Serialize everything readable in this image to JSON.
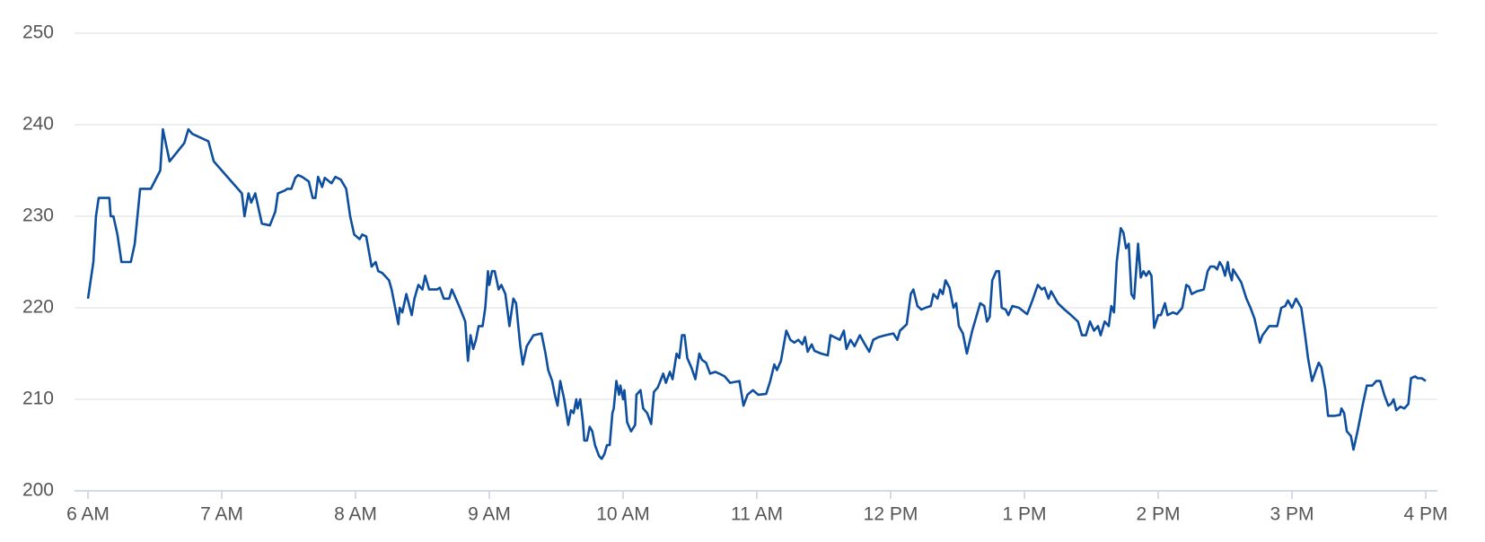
{
  "chart_data": {
    "type": "line",
    "color": "#0d4f9e",
    "grid": true,
    "x": [
      6.0,
      6.04,
      6.06,
      6.08,
      6.16,
      6.17,
      6.19,
      6.22,
      6.25,
      6.32,
      6.35,
      6.39,
      6.47,
      6.54,
      6.56,
      6.61,
      6.72,
      6.75,
      6.78,
      6.9,
      6.94,
      7.0,
      7.12,
      7.15,
      7.17,
      7.2,
      7.22,
      7.25,
      7.3,
      7.36,
      7.4,
      7.42,
      7.47,
      7.49,
      7.52,
      7.55,
      7.57,
      7.6,
      7.65,
      7.68,
      7.7,
      7.72,
      7.75,
      7.77,
      7.82,
      7.85,
      7.89,
      7.93,
      7.96,
      7.99,
      8.03,
      8.05,
      8.08,
      8.12,
      8.15,
      8.17,
      8.2,
      8.25,
      8.27,
      8.32,
      8.33,
      8.35,
      8.38,
      8.42,
      8.44,
      8.47,
      8.5,
      8.52,
      8.55,
      8.61,
      8.63,
      8.66,
      8.7,
      8.72,
      8.75,
      8.78,
      8.82,
      8.84,
      8.86,
      8.88,
      8.9,
      8.92,
      8.95,
      8.97,
      8.99,
      9.0,
      9.02,
      9.04,
      9.07,
      9.09,
      9.12,
      9.15,
      9.18,
      9.2,
      9.23,
      9.25,
      9.28,
      9.33,
      9.39,
      9.42,
      9.44,
      9.47,
      9.49,
      9.51,
      9.53,
      9.56,
      9.59,
      9.61,
      9.63,
      9.65,
      9.66,
      9.68,
      9.7,
      9.71,
      9.73,
      9.75,
      9.77,
      9.79,
      9.82,
      9.84,
      9.86,
      9.88,
      9.9,
      9.92,
      9.93,
      9.95,
      9.97,
      9.98,
      10.0,
      10.01,
      10.03,
      10.06,
      10.09,
      10.1,
      10.13,
      10.15,
      10.18,
      10.21,
      10.23,
      10.26,
      10.3,
      10.32,
      10.35,
      10.37,
      10.4,
      10.42,
      10.44,
      10.46,
      10.48,
      10.51,
      10.54,
      10.57,
      10.59,
      10.62,
      10.65,
      10.69,
      10.72,
      10.76,
      10.8,
      10.87,
      10.9,
      10.93,
      10.97,
      11.01,
      11.07,
      11.1,
      11.13,
      11.15,
      11.18,
      11.22,
      11.25,
      11.28,
      11.31,
      11.34,
      11.36,
      11.38,
      11.41,
      11.43,
      11.48,
      11.53,
      11.55,
      11.62,
      11.65,
      11.67,
      11.7,
      11.73,
      11.77,
      11.8,
      11.84,
      11.87,
      11.91,
      11.96,
      12.02,
      12.05,
      12.07,
      12.12,
      12.15,
      12.17,
      12.2,
      12.23,
      12.26,
      12.3,
      12.32,
      12.35,
      12.37,
      12.39,
      12.41,
      12.44,
      12.47,
      12.49,
      12.51,
      12.54,
      12.57,
      12.61,
      12.67,
      12.7,
      12.72,
      12.74,
      12.76,
      12.79,
      12.81,
      12.83,
      12.86,
      12.88,
      12.91,
      12.96,
      13.02,
      13.06,
      13.1,
      13.13,
      13.15,
      13.18,
      13.2,
      13.25,
      13.3,
      13.34,
      13.4,
      13.43,
      13.46,
      13.49,
      13.52,
      13.55,
      13.57,
      13.6,
      13.63,
      13.65,
      13.67,
      13.69,
      13.72,
      13.74,
      13.76,
      13.78,
      13.8,
      13.82,
      13.85,
      13.87,
      13.89,
      13.91,
      13.93,
      13.95,
      13.97,
      14.0,
      14.02,
      14.05,
      14.07,
      14.11,
      14.14,
      14.18,
      14.21,
      14.23,
      14.25,
      14.29,
      14.34,
      14.37,
      14.39,
      14.42,
      14.44,
      14.46,
      14.48,
      14.5,
      14.52,
      14.53,
      14.55,
      14.56,
      14.59,
      14.62,
      14.66,
      14.69,
      14.72,
      14.76,
      14.78,
      14.83,
      14.89,
      14.92,
      14.95,
      14.97,
      15.0,
      15.03,
      15.07,
      15.1,
      15.12,
      15.15,
      15.18,
      15.2,
      15.22,
      15.25,
      15.27,
      15.32,
      15.36,
      15.37,
      15.39,
      15.41,
      15.44,
      15.46,
      15.49,
      15.53,
      15.56,
      15.6,
      15.63,
      15.66,
      15.69,
      15.72,
      15.74,
      15.76,
      15.78,
      15.81,
      15.84,
      15.87,
      15.89,
      15.92,
      15.94,
      15.97,
      16.0
    ],
    "values": [
      221,
      225,
      230,
      232,
      232,
      230,
      230,
      228,
      225,
      225,
      227,
      233,
      233,
      235,
      239.5,
      236,
      238,
      239.5,
      239,
      238.2,
      236,
      235,
      233,
      232.5,
      230,
      232.5,
      231.5,
      232.5,
      229.2,
      229,
      230.5,
      232.5,
      232.8,
      233,
      233,
      234.2,
      234.5,
      234.3,
      233.8,
      232,
      232,
      234.3,
      233.2,
      234.2,
      233.6,
      234.3,
      234,
      233,
      230,
      228,
      227.5,
      228,
      227.8,
      224.5,
      225,
      224,
      223.8,
      223,
      222,
      218.2,
      220,
      219.5,
      221.5,
      219.2,
      221,
      222.5,
      222,
      223.5,
      222,
      222,
      222.2,
      221,
      221,
      222,
      221,
      220,
      218.5,
      214.2,
      217,
      215.5,
      216.5,
      218,
      218,
      220,
      224,
      222.5,
      224,
      224,
      222,
      222.5,
      221.5,
      218,
      221,
      220.5,
      216,
      213.8,
      215.8,
      217,
      217.2,
      215,
      213.2,
      212,
      210.5,
      209.3,
      212,
      210,
      207.2,
      208.8,
      208.5,
      210,
      209,
      210,
      207.5,
      205.5,
      205.5,
      207,
      206.5,
      205,
      203.8,
      203.5,
      204,
      205,
      205,
      208.5,
      209,
      212,
      210.5,
      211.5,
      210,
      211,
      207.5,
      206.5,
      207.2,
      210.5,
      211,
      209,
      208.5,
      207.3,
      210.8,
      211.3,
      212.8,
      211.8,
      213,
      212.2,
      215,
      214.5,
      217,
      217,
      214.5,
      213.5,
      212.2,
      215,
      214.3,
      214,
      212.8,
      213,
      212.8,
      212.5,
      211.8,
      212,
      209.3,
      210.5,
      211,
      210.5,
      210.6,
      212,
      213.8,
      213.2,
      214.2,
      217.5,
      216.5,
      216.2,
      216.5,
      216,
      216.8,
      215.2,
      216,
      215.3,
      215,
      214.8,
      217,
      216.5,
      217.5,
      215.5,
      216.5,
      215.8,
      217,
      216.2,
      215.2,
      216.5,
      216.8,
      217,
      217.2,
      216.5,
      217.5,
      218.2,
      221.5,
      222,
      220.2,
      219.8,
      220,
      220.2,
      221.5,
      221,
      222,
      221.5,
      223,
      222.2,
      220,
      220.5,
      218,
      217.2,
      215,
      217.5,
      220.5,
      220.2,
      218.5,
      219,
      223,
      224,
      224,
      220,
      219.8,
      219.2,
      220.2,
      220,
      219.3,
      220.8,
      222.5,
      222,
      222.2,
      221,
      221.8,
      220.5,
      219.8,
      219.3,
      218.5,
      217,
      217,
      218.5,
      217.5,
      218,
      217,
      218.5,
      218,
      220.2,
      219.5,
      225,
      228.7,
      228.2,
      226.5,
      227,
      221.5,
      221,
      227,
      223.3,
      224,
      223.5,
      224,
      223.5,
      217.8,
      219.2,
      219.2,
      220.5,
      219.2,
      219.5,
      219.3,
      220,
      222.5,
      222.3,
      221.5,
      221.8,
      222,
      224,
      224.5,
      224.5,
      224.2,
      225,
      224.5,
      223.5,
      225,
      224,
      223,
      224.2,
      223.5,
      222.8,
      221,
      220,
      218.8,
      216.2,
      217,
      218,
      218,
      220,
      220.2,
      220.8,
      220,
      221,
      220,
      216.8,
      214.5,
      212,
      213.2,
      214,
      213.5,
      211,
      208.2,
      208.2,
      208.3,
      209,
      208.5,
      206.5,
      206,
      204.5,
      206.5,
      209.5,
      211.5,
      211.5,
      212,
      212,
      210.5,
      209.3,
      209.5,
      210,
      208.8,
      209.2,
      209,
      209.5,
      212.3,
      212.5,
      212.3,
      212.3,
      212
    ],
    "xlim": [
      6,
      16
    ],
    "xticks": [
      {
        "value": 6,
        "label": "6 AM"
      },
      {
        "value": 7,
        "label": "7 AM"
      },
      {
        "value": 8,
        "label": "8 AM"
      },
      {
        "value": 9,
        "label": "9 AM"
      },
      {
        "value": 10,
        "label": "10 AM"
      },
      {
        "value": 11,
        "label": "11 AM"
      },
      {
        "value": 12,
        "label": "12 PM"
      },
      {
        "value": 13,
        "label": "1 PM"
      },
      {
        "value": 14,
        "label": "2 PM"
      },
      {
        "value": 15,
        "label": "3 PM"
      },
      {
        "value": 16,
        "label": "4 PM"
      }
    ],
    "ylim": [
      200,
      250
    ],
    "yticks": [
      200,
      210,
      220,
      230,
      240,
      250
    ]
  }
}
